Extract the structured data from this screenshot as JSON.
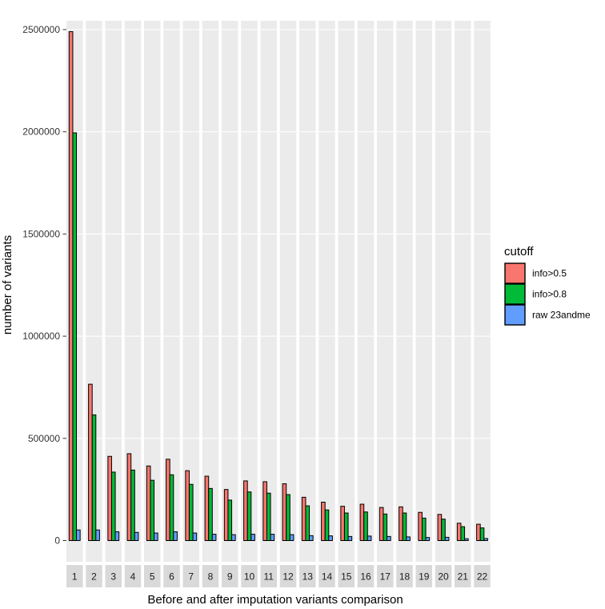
{
  "chart_data": {
    "type": "bar",
    "layout": "faceted",
    "facets": [
      "1",
      "2",
      "3",
      "4",
      "5",
      "6",
      "7",
      "8",
      "9",
      "10",
      "11",
      "12",
      "13",
      "14",
      "15",
      "16",
      "17",
      "18",
      "19",
      "20",
      "21",
      "22"
    ],
    "xlabel": "Before and after imputation variants comparison",
    "ylabel": "number of variants",
    "ylim": [
      0,
      2500000
    ],
    "y_ticks": [
      0,
      500000,
      1000000,
      1500000,
      2000000,
      2500000
    ],
    "y_tick_labels": [
      "0",
      "500000",
      "1000000",
      "1500000",
      "2000000",
      "2500000"
    ],
    "grid": true,
    "legend": {
      "title": "cutoff",
      "position": "right"
    },
    "series": [
      {
        "name": "info>0.5",
        "color": "#F8766D",
        "values": [
          2490000,
          765000,
          412000,
          425000,
          365000,
          398000,
          342000,
          315000,
          250000,
          292000,
          288000,
          278000,
          212000,
          188000,
          168000,
          178000,
          162000,
          165000,
          138000,
          128000,
          85000,
          80000
        ]
      },
      {
        "name": "info>0.8",
        "color": "#00BA38",
        "values": [
          1995000,
          615000,
          335000,
          345000,
          295000,
          322000,
          275000,
          255000,
          198000,
          238000,
          232000,
          225000,
          170000,
          150000,
          135000,
          140000,
          130000,
          135000,
          110000,
          105000,
          68000,
          62000
        ]
      },
      {
        "name": "raw 23andme",
        "color": "#619CFF",
        "values": [
          52000,
          52000,
          43000,
          40000,
          37000,
          43000,
          37000,
          31000,
          29000,
          31000,
          31000,
          29000,
          24000,
          23000,
          20000,
          22000,
          20000,
          18000,
          15000,
          16000,
          9000,
          10000
        ]
      }
    ]
  }
}
